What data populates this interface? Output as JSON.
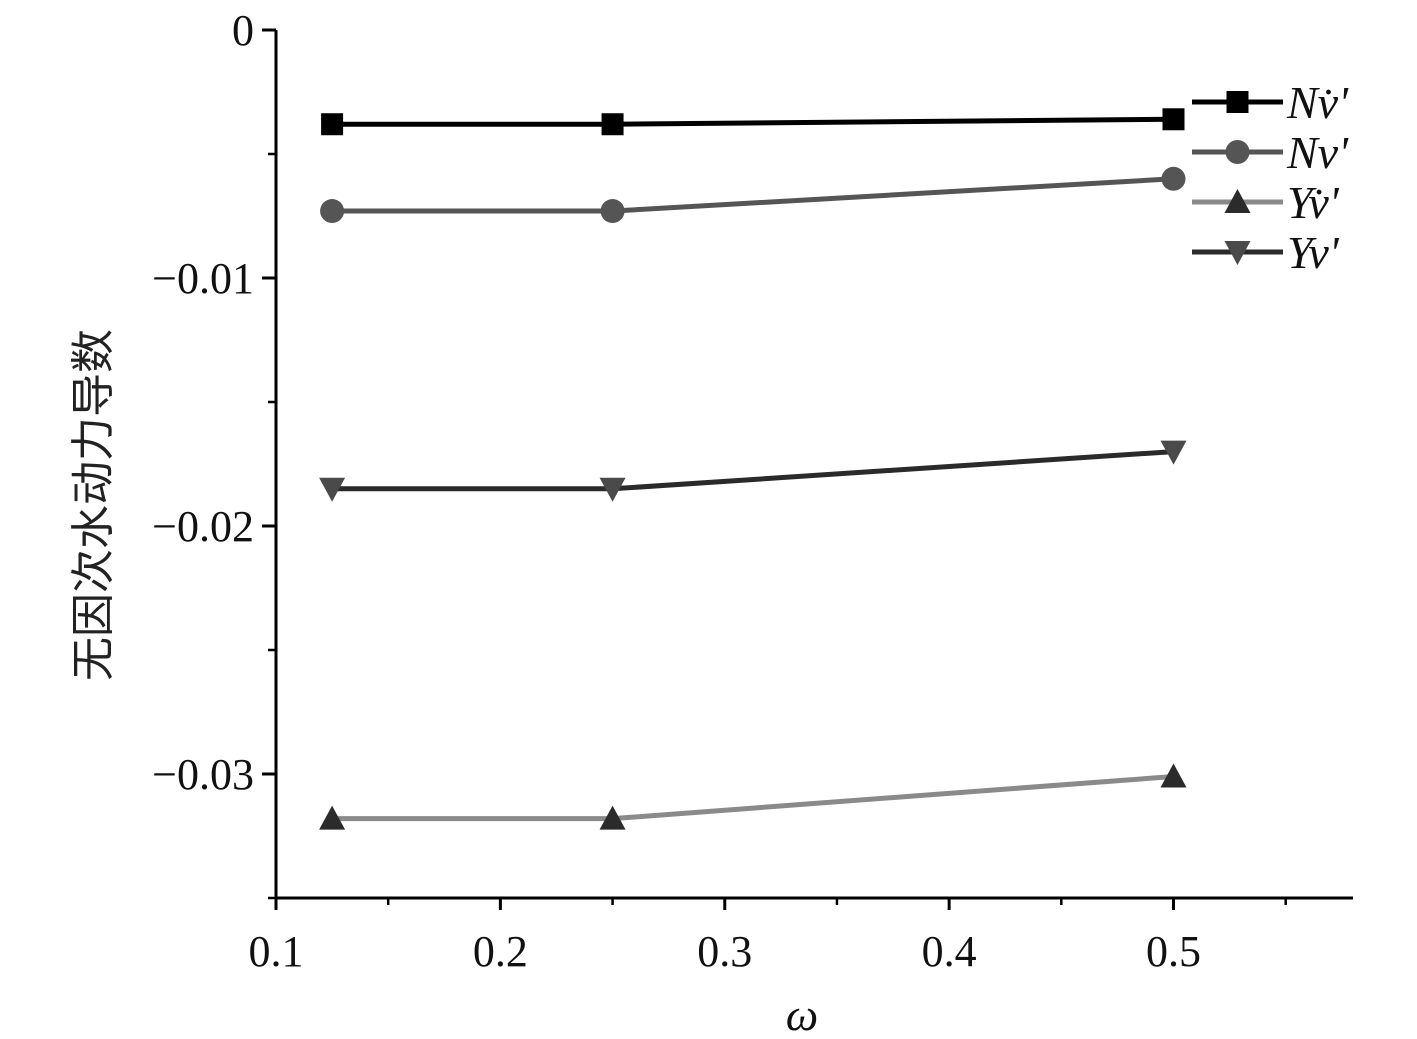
{
  "chart_data": {
    "type": "line",
    "title": "",
    "xlabel": "ω",
    "ylabel": "无因次水动力导数",
    "xlim": [
      0.1,
      0.58
    ],
    "ylim": [
      -0.035,
      0
    ],
    "x_ticks": [
      "0.1",
      "0.2",
      "0.3",
      "0.4",
      "0.5"
    ],
    "y_ticks": [
      "0",
      "-0.01",
      "-0.02",
      "-0.03"
    ],
    "grid": false,
    "legend_position": "top-right",
    "x": [
      0.125,
      0.25,
      0.5
    ],
    "series": [
      {
        "name": "Nv̇'",
        "marker": "square",
        "color": "#000000",
        "values": [
          -0.0038,
          -0.0038,
          -0.0036
        ]
      },
      {
        "name": "Nv'",
        "marker": "circle",
        "color": "#555555",
        "values": [
          -0.0073,
          -0.0073,
          -0.006
        ]
      },
      {
        "name": "Yv̇'",
        "marker": "triangle-up",
        "color": "#8a8a8a",
        "values": [
          -0.0318,
          -0.0318,
          -0.0301
        ]
      },
      {
        "name": "Yv'",
        "marker": "triangle-down",
        "color": "#2a2a2a",
        "values": [
          -0.0185,
          -0.0185,
          -0.017
        ]
      }
    ]
  }
}
